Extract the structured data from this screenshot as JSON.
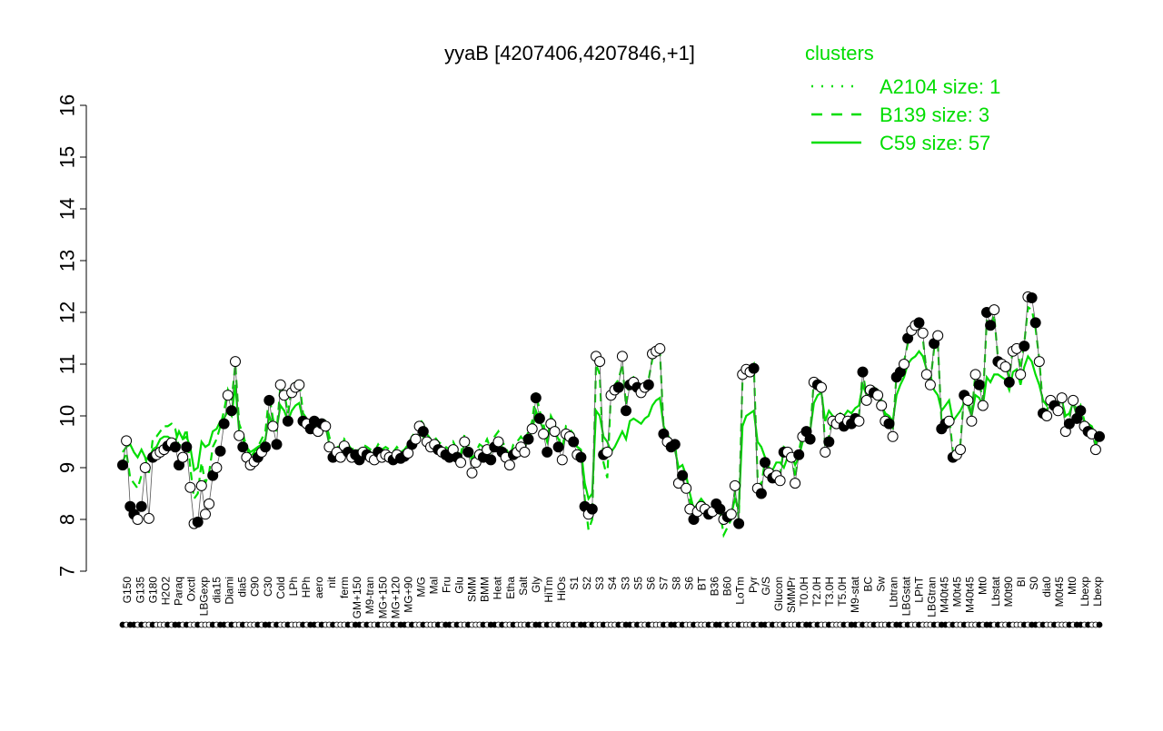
{
  "chart_data": {
    "type": "line",
    "title": "yyaB [4207406,4207846,+1]",
    "xlabel": "",
    "ylabel": "",
    "ylim": [
      7,
      16
    ],
    "yticks": [
      7,
      8,
      9,
      10,
      11,
      12,
      13,
      14,
      15,
      16
    ],
    "legend": {
      "title": "clusters",
      "placement": "top-right",
      "color": "#00dd00",
      "entries": [
        {
          "label": "A2104 size: 1",
          "style": "dotted"
        },
        {
          "label": "B139 size: 3",
          "style": "dashed"
        },
        {
          "label": "C59 size: 57",
          "style": "solid"
        }
      ]
    },
    "colors": {
      "line": "#00dd00",
      "axis": "#000000",
      "point_stroke": "#000000"
    },
    "x_tick_labels": [
      "G150",
      "G135",
      "G180",
      "H2O2",
      "Paraq",
      "Oxctl",
      "LBGexp",
      "dia15",
      "Diami",
      "dia5",
      "C90",
      "C30",
      "Cold",
      "LPh",
      "HPh",
      "aero",
      "nit",
      "ferm",
      "GM+150",
      "M9-tran",
      "MG+150",
      "MG+120",
      "MG+90",
      "M/G",
      "Mal",
      "Fru",
      "Glu",
      "SMM",
      "BMM",
      "Heat",
      "Etha",
      "Salt",
      "Gly",
      "HiTm",
      "HiOs",
      "S1",
      "S2",
      "S3",
      "S4",
      "S3",
      "S5",
      "S6",
      "S7",
      "S8",
      "S6",
      "BT",
      "B36",
      "B60",
      "LoTm",
      "Pyr",
      "G/S",
      "Glucon",
      "SMMPr",
      "T0.0H",
      "T2.0H",
      "T3.0H",
      "T5.0H",
      "M9-stat",
      "BC",
      "Sw",
      "Lbtran",
      "LBGstat",
      "LPhT",
      "LBGtran",
      "M40t45",
      "M0t45",
      "M40t45",
      "Mt0",
      "Lbstat",
      "M0t90",
      "BI",
      "S0",
      "dia0",
      "M0t45",
      "Mt0",
      "Lbexp",
      "Lbexp"
    ],
    "series": [
      {
        "style": "points",
        "values": [
          9.05,
          9.52,
          8.25,
          8.1,
          8.0,
          8.25,
          9.0,
          8.02,
          9.2,
          9.25,
          9.3,
          9.35,
          9.42,
          9.48,
          9.4,
          9.05,
          9.2,
          9.4,
          8.62,
          7.92,
          7.95,
          8.65,
          8.1,
          8.3,
          8.85,
          9.0,
          9.32,
          9.85,
          10.4,
          10.1,
          11.05,
          9.62,
          9.4,
          9.2,
          9.05,
          9.12,
          9.2,
          9.3,
          9.4,
          10.3,
          9.8,
          9.45,
          10.6,
          10.4,
          9.9,
          10.45,
          10.55,
          10.6,
          9.9,
          9.85,
          9.75,
          9.9,
          9.7,
          9.85,
          9.8,
          9.4,
          9.2,
          9.3,
          9.2,
          9.42,
          9.3,
          9.2,
          9.25,
          9.15,
          9.3,
          9.25,
          9.2,
          9.15,
          9.3,
          9.2,
          9.25,
          9.2,
          9.15,
          9.25,
          9.18,
          9.22,
          9.28,
          9.45,
          9.55,
          9.8,
          9.7,
          9.5,
          9.4,
          9.45,
          9.35,
          9.3,
          9.25,
          9.2,
          9.35,
          9.2,
          9.1,
          9.5,
          9.3,
          8.9,
          9.1,
          9.25,
          9.2,
          9.35,
          9.15,
          9.4,
          9.5,
          9.3,
          9.2,
          9.05,
          9.25,
          9.3,
          9.4,
          9.3,
          9.55,
          9.75,
          10.35,
          9.95,
          9.65,
          9.3,
          9.85,
          9.7,
          9.4,
          9.15,
          9.65,
          9.6,
          9.5,
          9.25,
          9.2,
          8.25,
          8.1,
          8.2,
          11.15,
          11.05,
          9.25,
          9.3,
          10.4,
          10.5,
          10.55,
          11.15,
          10.1,
          10.6,
          10.65,
          10.55,
          10.45,
          10.55,
          10.6,
          11.2,
          11.25,
          11.3,
          9.65,
          9.5,
          9.4,
          9.45,
          8.7,
          8.85,
          8.6,
          8.2,
          8.0,
          8.15,
          8.25,
          8.2,
          8.1,
          8.15,
          8.3,
          8.2,
          8.0,
          8.05,
          8.1,
          8.65,
          7.92,
          10.8,
          10.9,
          10.85,
          10.92,
          8.6,
          8.5,
          9.1,
          8.9,
          8.8,
          8.85,
          8.75,
          9.3,
          9.3,
          9.2,
          8.7,
          9.25,
          9.6,
          9.7,
          9.55,
          10.65,
          10.6,
          10.55,
          9.3,
          9.5,
          9.9,
          9.85,
          9.95,
          9.8,
          9.9,
          9.85,
          9.95,
          9.9,
          10.85,
          10.3,
          10.5,
          10.45,
          10.4,
          10.2,
          9.9,
          9.85,
          9.6,
          10.75,
          10.85,
          11.0,
          11.5,
          11.65,
          11.75,
          11.8,
          11.6,
          10.8,
          10.6,
          11.4,
          11.55,
          9.75,
          9.85,
          9.9,
          9.2,
          9.25,
          9.35,
          10.4,
          10.3,
          9.9,
          10.8,
          10.6,
          10.2,
          12.0,
          11.75,
          12.05,
          11.05,
          11.0,
          10.95,
          10.65,
          11.25,
          11.3,
          10.8,
          11.35,
          12.3,
          12.28,
          11.8,
          11.05,
          10.05,
          10.0,
          10.3,
          10.2,
          10.1,
          10.35,
          9.7,
          9.85,
          10.3,
          9.95,
          10.1,
          9.8,
          9.7,
          9.65,
          9.35,
          9.6
        ]
      },
      {
        "style": "solid",
        "values": [
          9.3,
          9.4,
          9.45,
          9.3,
          9.2,
          9.35,
          9.2,
          9.15,
          9.35,
          9.4,
          9.55,
          9.6,
          9.6,
          9.55,
          9.5,
          9.7,
          9.55,
          9.6,
          9.4,
          8.95,
          9.0,
          9.5,
          9.4,
          9.45,
          9.7,
          9.75,
          9.9,
          9.95,
          10.1,
          10.0,
          10.6,
          9.7,
          9.55,
          9.4,
          9.3,
          9.35,
          9.4,
          9.45,
          9.55,
          10.0,
          9.8,
          9.75,
          10.2,
          10.1,
          9.9,
          10.1,
          10.2,
          10.25,
          9.9,
          9.85,
          9.8,
          9.85,
          9.75,
          9.8,
          9.8,
          9.45,
          9.3,
          9.35,
          9.25,
          9.4,
          9.35,
          9.3,
          9.3,
          9.25,
          9.35,
          9.3,
          9.3,
          9.25,
          9.3,
          9.25,
          9.3,
          9.25,
          9.2,
          9.25,
          9.2,
          9.25,
          9.3,
          9.4,
          9.5,
          9.65,
          9.6,
          9.5,
          9.4,
          9.45,
          9.4,
          9.35,
          9.3,
          9.3,
          9.4,
          9.3,
          9.25,
          9.45,
          9.35,
          9.2,
          9.25,
          9.35,
          9.3,
          9.4,
          9.3,
          9.45,
          9.55,
          9.4,
          9.3,
          9.2,
          9.35,
          9.4,
          9.45,
          9.4,
          9.55,
          9.7,
          10.1,
          9.9,
          9.75,
          9.5,
          9.8,
          9.7,
          9.55,
          9.4,
          9.65,
          9.65,
          9.55,
          9.4,
          9.35,
          8.7,
          8.4,
          8.5,
          10.1,
          10.0,
          9.6,
          9.5,
          9.3,
          9.4,
          9.55,
          9.7,
          9.55,
          9.9,
          9.95,
          9.9,
          9.85,
          9.95,
          10.0,
          10.2,
          10.3,
          10.35,
          9.8,
          9.65,
          9.5,
          9.35,
          9.0,
          9.05,
          8.85,
          8.5,
          8.2,
          8.3,
          8.4,
          8.3,
          8.2,
          8.2,
          8.35,
          8.25,
          7.95,
          8.0,
          8.1,
          8.4,
          8.2,
          9.8,
          10.0,
          10.05,
          10.1,
          9.5,
          9.4,
          9.2,
          9.0,
          8.95,
          9.1,
          9.1,
          9.0,
          9.2,
          9.25,
          9.05,
          9.2,
          9.5,
          9.6,
          9.7,
          10.25,
          10.4,
          10.45,
          9.9,
          10.1,
          10.0,
          9.95,
          10.05,
          10.0,
          10.1,
          10.05,
          10.15,
          10.2,
          10.6,
          10.4,
          10.5,
          10.4,
          10.35,
          10.2,
          10.05,
          10.0,
          9.9,
          10.4,
          10.6,
          10.75,
          11.0,
          11.1,
          11.15,
          11.25,
          11.15,
          10.9,
          10.8,
          10.5,
          10.4,
          10.1,
          10.2,
          10.3,
          9.9,
          10.0,
          10.1,
          10.25,
          10.2,
          10.0,
          10.4,
          10.35,
          10.2,
          10.75,
          10.65,
          10.8,
          10.8,
          10.75,
          10.7,
          10.5,
          10.85,
          10.9,
          10.6,
          10.95,
          11.15,
          11.05,
          10.8,
          10.6,
          10.3,
          10.2,
          10.35,
          10.3,
          10.25,
          10.3,
          10.0,
          10.05,
          10.25,
          10.0,
          10.05,
          9.9,
          9.85,
          9.8,
          9.6,
          9.7
        ]
      },
      {
        "style": "dashed",
        "values": [
          9.1,
          9.3,
          8.8,
          8.7,
          8.6,
          8.85,
          9.2,
          8.9,
          9.55,
          9.6,
          9.7,
          9.8,
          9.8,
          9.85,
          9.75,
          9.4,
          9.55,
          9.75,
          9.0,
          8.4,
          8.5,
          9.1,
          8.7,
          8.9,
          9.4,
          9.55,
          9.8,
          10.1,
          10.5,
          10.3,
          11.0,
          9.85,
          9.65,
          9.4,
          9.2,
          9.3,
          9.4,
          9.55,
          9.7,
          10.4,
          9.95,
          9.7,
          10.6,
          10.45,
          10.05,
          10.55,
          10.65,
          10.7,
          10.05,
          9.95,
          9.85,
          10.0,
          9.85,
          9.95,
          9.9,
          9.6,
          9.35,
          9.45,
          9.3,
          9.55,
          9.45,
          9.35,
          9.4,
          9.3,
          9.45,
          9.4,
          9.35,
          9.3,
          9.45,
          9.35,
          9.4,
          9.35,
          9.3,
          9.4,
          9.3,
          9.35,
          9.45,
          9.6,
          9.7,
          9.95,
          9.85,
          9.65,
          9.55,
          9.6,
          9.5,
          9.45,
          9.4,
          9.35,
          9.5,
          9.35,
          9.25,
          9.65,
          9.45,
          9.1,
          9.3,
          9.45,
          9.4,
          9.55,
          9.35,
          9.6,
          9.7,
          9.5,
          9.4,
          9.2,
          9.45,
          9.5,
          9.6,
          9.5,
          9.7,
          9.9,
          10.45,
          10.1,
          9.85,
          9.5,
          10.0,
          9.85,
          9.6,
          9.35,
          9.8,
          9.75,
          9.65,
          9.4,
          9.35,
          8.4,
          7.8,
          8.0,
          11.0,
          10.8,
          9.1,
          8.8,
          10.5,
          10.6,
          10.7,
          11.0,
          10.2,
          10.7,
          10.75,
          10.65,
          10.55,
          10.65,
          10.7,
          11.1,
          11.2,
          11.25,
          9.75,
          9.6,
          9.45,
          9.5,
          8.8,
          8.95,
          8.7,
          8.35,
          8.05,
          8.2,
          8.35,
          8.25,
          8.1,
          8.15,
          8.3,
          8.15,
          7.7,
          7.85,
          8.0,
          8.55,
          8.0,
          10.7,
          10.85,
          10.9,
          11.0,
          8.8,
          8.65,
          9.15,
          8.95,
          8.9,
          8.95,
          8.85,
          9.4,
          9.35,
          9.25,
          8.8,
          9.3,
          9.7,
          9.8,
          9.65,
          10.7,
          10.7,
          10.65,
          9.4,
          9.6,
          10.0,
          9.95,
          10.05,
          9.9,
          10.0,
          9.95,
          10.05,
          10.0,
          10.85,
          10.4,
          10.6,
          10.55,
          10.5,
          10.3,
          10.0,
          9.95,
          9.7,
          10.8,
          10.9,
          11.05,
          11.4,
          11.55,
          11.65,
          11.7,
          11.5,
          10.85,
          10.65,
          11.3,
          11.4,
          9.85,
          9.95,
          10.0,
          9.3,
          9.35,
          9.45,
          10.45,
          10.35,
          10.0,
          10.85,
          10.65,
          10.3,
          11.85,
          11.7,
          11.95,
          11.1,
          11.05,
          11.0,
          10.75,
          11.3,
          11.35,
          10.9,
          11.4,
          12.1,
          12.05,
          11.7,
          11.1,
          10.15,
          10.1,
          10.35,
          10.3,
          10.2,
          10.4,
          9.8,
          9.95,
          10.35,
          10.05,
          10.2,
          9.9,
          9.8,
          9.75,
          9.45,
          9.65
        ]
      }
    ]
  }
}
